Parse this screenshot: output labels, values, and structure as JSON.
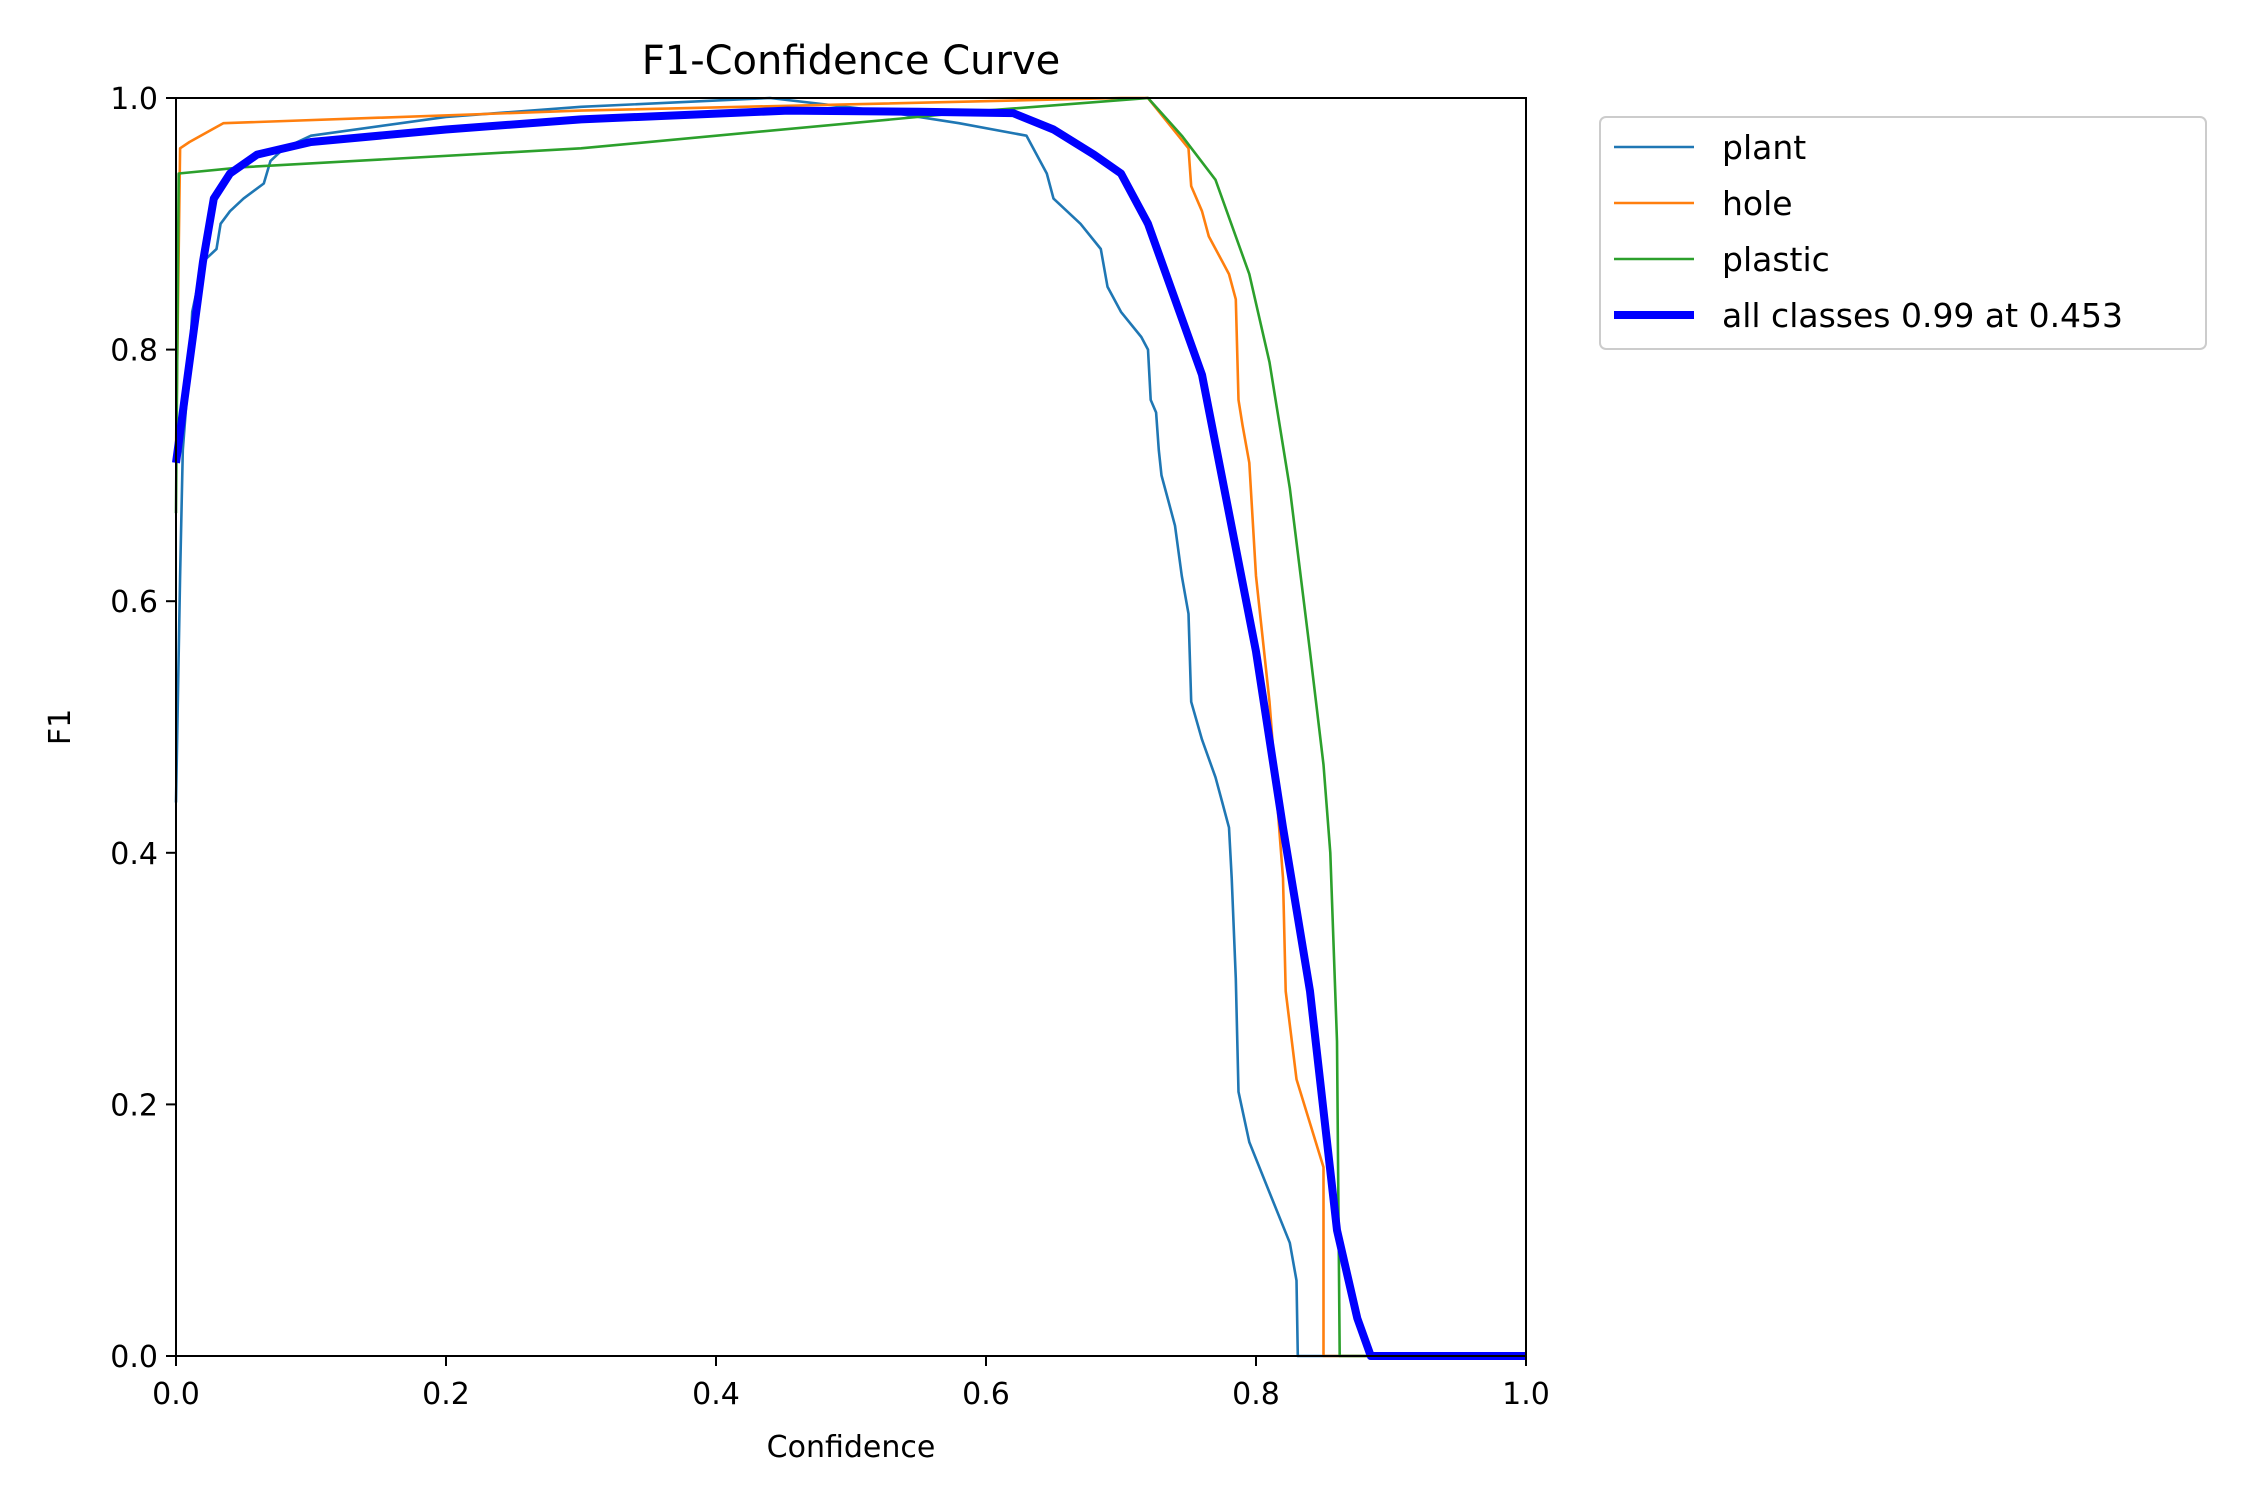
{
  "chart_data": {
    "type": "line",
    "title": "F1-Confidence Curve",
    "xlabel": "Confidence",
    "ylabel": "F1",
    "xlim": [
      0,
      1
    ],
    "ylim": [
      0,
      1
    ],
    "xticks": [
      "0.0",
      "0.2",
      "0.4",
      "0.6",
      "0.8",
      "1.0"
    ],
    "yticks": [
      "0.0",
      "0.2",
      "0.4",
      "0.6",
      "0.8",
      "1.0"
    ],
    "grid": false,
    "legend_position": "outside-top-right",
    "series": [
      {
        "name": "plant",
        "color": "#1f77b4",
        "points": [
          [
            0.0,
            0.44
          ],
          [
            0.003,
            0.62
          ],
          [
            0.005,
            0.72
          ],
          [
            0.01,
            0.79
          ],
          [
            0.012,
            0.83
          ],
          [
            0.02,
            0.87
          ],
          [
            0.025,
            0.875
          ],
          [
            0.03,
            0.88
          ],
          [
            0.033,
            0.9
          ],
          [
            0.04,
            0.91
          ],
          [
            0.05,
            0.92
          ],
          [
            0.065,
            0.932
          ],
          [
            0.07,
            0.95
          ],
          [
            0.08,
            0.96
          ],
          [
            0.1,
            0.97
          ],
          [
            0.2,
            0.985
          ],
          [
            0.3,
            0.993
          ],
          [
            0.44,
            1.0
          ],
          [
            0.52,
            0.99
          ],
          [
            0.58,
            0.98
          ],
          [
            0.63,
            0.97
          ],
          [
            0.645,
            0.94
          ],
          [
            0.65,
            0.92
          ],
          [
            0.67,
            0.9
          ],
          [
            0.685,
            0.88
          ],
          [
            0.69,
            0.85
          ],
          [
            0.7,
            0.83
          ],
          [
            0.715,
            0.81
          ],
          [
            0.72,
            0.8
          ],
          [
            0.722,
            0.76
          ],
          [
            0.726,
            0.75
          ],
          [
            0.728,
            0.72
          ],
          [
            0.73,
            0.7
          ],
          [
            0.735,
            0.68
          ],
          [
            0.74,
            0.66
          ],
          [
            0.745,
            0.62
          ],
          [
            0.75,
            0.59
          ],
          [
            0.752,
            0.52
          ],
          [
            0.76,
            0.49
          ],
          [
            0.77,
            0.46
          ],
          [
            0.775,
            0.44
          ],
          [
            0.78,
            0.42
          ],
          [
            0.782,
            0.38
          ],
          [
            0.785,
            0.3
          ],
          [
            0.787,
            0.21
          ],
          [
            0.795,
            0.17
          ],
          [
            0.81,
            0.13
          ],
          [
            0.825,
            0.09
          ],
          [
            0.83,
            0.06
          ],
          [
            0.831,
            0.0
          ],
          [
            1.0,
            0.0
          ]
        ]
      },
      {
        "name": "hole",
        "color": "#ff7f0e",
        "points": [
          [
            0.0,
            0.72
          ],
          [
            0.003,
            0.96
          ],
          [
            0.01,
            0.965
          ],
          [
            0.035,
            0.98
          ],
          [
            0.3,
            0.99
          ],
          [
            0.5,
            0.995
          ],
          [
            0.7,
            1.0
          ],
          [
            0.72,
            1.0
          ],
          [
            0.75,
            0.96
          ],
          [
            0.752,
            0.93
          ],
          [
            0.76,
            0.91
          ],
          [
            0.765,
            0.89
          ],
          [
            0.775,
            0.87
          ],
          [
            0.78,
            0.86
          ],
          [
            0.785,
            0.84
          ],
          [
            0.787,
            0.76
          ],
          [
            0.79,
            0.74
          ],
          [
            0.795,
            0.71
          ],
          [
            0.8,
            0.62
          ],
          [
            0.81,
            0.52
          ],
          [
            0.82,
            0.38
          ],
          [
            0.822,
            0.29
          ],
          [
            0.83,
            0.22
          ],
          [
            0.85,
            0.15
          ],
          [
            0.85,
            0.0
          ],
          [
            1.0,
            0.0
          ]
        ]
      },
      {
        "name": "plastic",
        "color": "#2ca02c",
        "points": [
          [
            0.0,
            0.67
          ],
          [
            0.002,
            0.94
          ],
          [
            0.05,
            0.945
          ],
          [
            0.3,
            0.96
          ],
          [
            0.6,
            0.99
          ],
          [
            0.72,
            1.0
          ],
          [
            0.745,
            0.97
          ],
          [
            0.77,
            0.935
          ],
          [
            0.795,
            0.86
          ],
          [
            0.81,
            0.79
          ],
          [
            0.825,
            0.69
          ],
          [
            0.84,
            0.56
          ],
          [
            0.85,
            0.47
          ],
          [
            0.855,
            0.4
          ],
          [
            0.86,
            0.25
          ],
          [
            0.862,
            0.0
          ],
          [
            1.0,
            0.0
          ]
        ]
      },
      {
        "name": "all classes 0.99 at 0.453",
        "color": "#0000ff",
        "thick": true,
        "points": [
          [
            0.0,
            0.71
          ],
          [
            0.01,
            0.79
          ],
          [
            0.02,
            0.87
          ],
          [
            0.028,
            0.92
          ],
          [
            0.04,
            0.94
          ],
          [
            0.06,
            0.955
          ],
          [
            0.1,
            0.965
          ],
          [
            0.2,
            0.975
          ],
          [
            0.3,
            0.983
          ],
          [
            0.453,
            0.99
          ],
          [
            0.55,
            0.989
          ],
          [
            0.62,
            0.988
          ],
          [
            0.65,
            0.975
          ],
          [
            0.68,
            0.955
          ],
          [
            0.7,
            0.94
          ],
          [
            0.72,
            0.9
          ],
          [
            0.74,
            0.84
          ],
          [
            0.76,
            0.78
          ],
          [
            0.78,
            0.67
          ],
          [
            0.8,
            0.56
          ],
          [
            0.82,
            0.42
          ],
          [
            0.84,
            0.29
          ],
          [
            0.86,
            0.1
          ],
          [
            0.875,
            0.03
          ],
          [
            0.885,
            0.0
          ],
          [
            1.0,
            0.0
          ]
        ]
      }
    ]
  }
}
